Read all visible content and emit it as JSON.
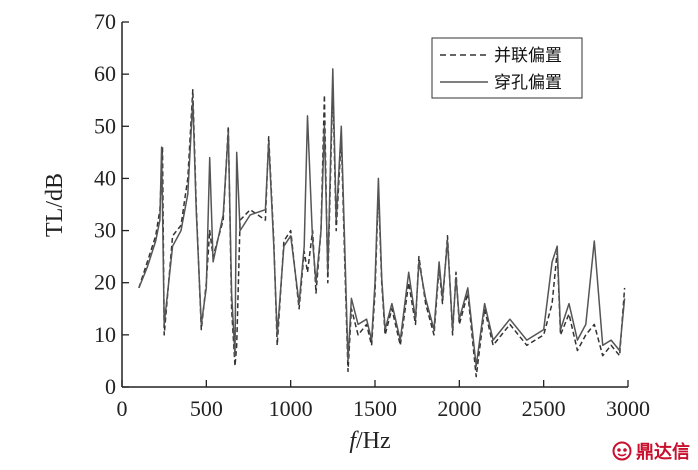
{
  "chart_data": {
    "type": "line",
    "title": "",
    "xlabel_italic": "f",
    "xlabel_rest": "/Hz",
    "ylabel": "TL/dB",
    "xlim": [
      0,
      3000
    ],
    "ylim": [
      0,
      70
    ],
    "xticks": [
      0,
      500,
      1000,
      1500,
      2000,
      2500,
      3000
    ],
    "yticks": [
      0,
      10,
      20,
      30,
      40,
      50,
      60,
      70
    ],
    "grid": false,
    "legend_position": "top-right",
    "series": [
      {
        "name": "并联偏置",
        "style": "dashed",
        "color": "#333333",
        "x": [
          100,
          150,
          200,
          225,
          240,
          250,
          300,
          350,
          390,
          420,
          440,
          470,
          500,
          520,
          540,
          600,
          630,
          650,
          670,
          680,
          700,
          760,
          850,
          870,
          900,
          920,
          960,
          1000,
          1050,
          1080,
          1100,
          1130,
          1150,
          1180,
          1200,
          1220,
          1250,
          1270,
          1300,
          1320,
          1340,
          1360,
          1400,
          1450,
          1480,
          1500,
          1520,
          1540,
          1560,
          1600,
          1650,
          1700,
          1740,
          1760,
          1800,
          1850,
          1880,
          1900,
          1930,
          1960,
          1980,
          2000,
          2050,
          2100,
          2150,
          2200,
          2250,
          2300,
          2400,
          2500,
          2550,
          2580,
          2600,
          2650,
          2700,
          2750,
          2800,
          2850,
          2900,
          2950,
          2980
        ],
        "y": [
          19,
          24,
          29,
          34,
          46,
          10,
          29,
          31,
          40,
          57,
          35,
          11,
          20,
          30,
          25,
          32,
          50,
          15,
          4,
          8,
          32,
          34,
          32,
          48,
          28,
          8,
          28,
          30,
          15,
          26,
          22,
          30,
          18,
          30,
          56,
          20,
          58,
          30,
          48,
          25,
          3,
          15,
          10,
          12,
          8,
          18,
          38,
          20,
          10,
          15,
          8,
          20,
          12,
          25,
          16,
          10,
          23,
          16,
          29,
          10,
          22,
          12,
          18,
          2,
          15,
          8,
          10,
          12,
          8,
          10,
          16,
          26,
          10,
          14,
          7,
          10,
          12,
          6,
          8,
          6,
          19
        ]
      },
      {
        "name": "穿孔偏置",
        "style": "solid",
        "color": "#555555",
        "x": [
          100,
          150,
          200,
          225,
          235,
          250,
          300,
          350,
          390,
          420,
          440,
          470,
          500,
          520,
          540,
          600,
          630,
          650,
          670,
          680,
          700,
          760,
          850,
          870,
          900,
          920,
          960,
          1000,
          1050,
          1080,
          1100,
          1130,
          1150,
          1180,
          1200,
          1220,
          1250,
          1270,
          1300,
          1320,
          1340,
          1360,
          1400,
          1450,
          1480,
          1500,
          1520,
          1540,
          1560,
          1600,
          1650,
          1700,
          1740,
          1760,
          1800,
          1850,
          1880,
          1900,
          1930,
          1960,
          1980,
          2000,
          2050,
          2100,
          2150,
          2200,
          2250,
          2300,
          2400,
          2500,
          2550,
          2580,
          2600,
          2650,
          2700,
          2750,
          2800,
          2850,
          2900,
          2950,
          2980
        ],
        "y": [
          19,
          23,
          28,
          32,
          46,
          12,
          27,
          30,
          37,
          55,
          34,
          12,
          19,
          44,
          24,
          33,
          49,
          18,
          6,
          45,
          30,
          33,
          34,
          47,
          27,
          10,
          27,
          29,
          16,
          27,
          52,
          28,
          20,
          30,
          50,
          22,
          61,
          32,
          50,
          28,
          5,
          17,
          12,
          13,
          9,
          20,
          40,
          21,
          11,
          16,
          9,
          22,
          13,
          24,
          17,
          11,
          24,
          17,
          28,
          11,
          21,
          13,
          19,
          4,
          16,
          9,
          11,
          13,
          9,
          11,
          24,
          27,
          11,
          16,
          9,
          12,
          28,
          8,
          9,
          7,
          17
        ]
      }
    ]
  },
  "watermark": {
    "text": "鼎达信",
    "color": "#c8102e"
  }
}
